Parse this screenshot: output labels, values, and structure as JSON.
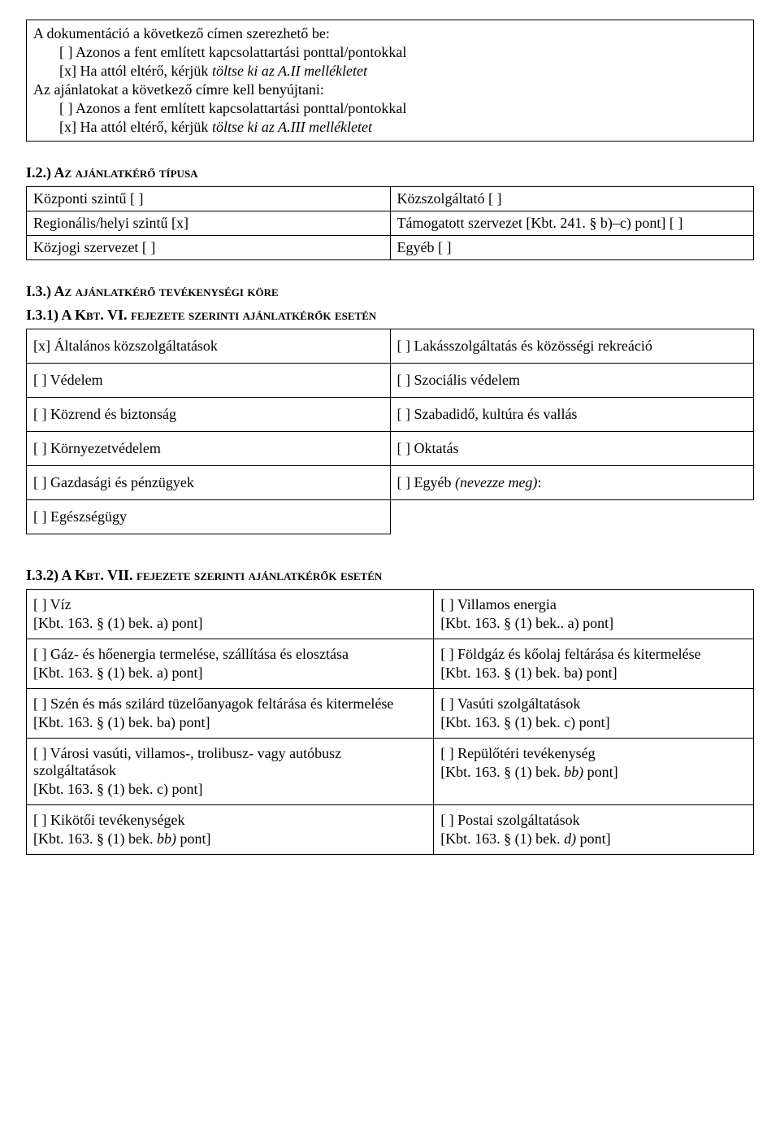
{
  "section1": {
    "line1": "A dokumentáció a következő címen szerezhető be:",
    "opt1": "[ ] Azonos a fent említett kapcsolattartási ponttal/pontokkal",
    "opt2_prefix": "[x] Ha attól eltérő, kérjük ",
    "opt2_italic": "töltse ki az A.II mellékletet",
    "line2": "Az ajánlatokat a következő címre kell benyújtani:",
    "opt3": "[ ] Azonos a fent említett kapcsolattartási ponttal/pontokkal",
    "opt4_prefix": "[x] Ha attól eltérő, kérjük ",
    "opt4_italic": "töltse ki az A.III mellékletet"
  },
  "heading_i2": "I.2.) Az ajánlatkérő típusa",
  "type_table": {
    "r1c1": "Központi szintű [ ]",
    "r1c2": "Közszolgáltató [ ]",
    "r2c1": "Regionális/helyi szintű [x]",
    "r2c2": "Támogatott szervezet [Kbt. 241. § b)–c) pont] [ ]",
    "r3c1": "Közjogi szervezet [ ]",
    "r3c2": "Egyéb [ ]"
  },
  "heading_i3": "I.3.) Az ajánlatkérő tevékenységi köre",
  "heading_i31": "I.3.1) A Kbt. VI. fejezete szerinti ajánlatkérők esetén",
  "activity_table": {
    "r1c1": "[x] Általános közszolgáltatások",
    "r1c2": "[ ] Lakásszolgáltatás és közösségi rekreáció",
    "r2c1": "[ ] Védelem",
    "r2c2": "[ ] Szociális védelem",
    "r3c1": "[ ] Közrend és biztonság",
    "r3c2": "[ ] Szabadidő, kultúra és vallás",
    "r4c1": "[ ] Környezetvédelem",
    "r4c2": "[ ] Oktatás",
    "r5c1": "[ ] Gazdasági és pénzügyek",
    "r5c2_prefix": "[ ] Egyéb ",
    "r5c2_italic": "(nevezze meg)",
    "r5c2_suffix": ":",
    "r6c1": "[ ] Egészségügy"
  },
  "heading_i32": "I.3.2) A Kbt. VII. fejezete szerinti ajánlatkérők esetén",
  "kbt_table": {
    "r1c1_a": "[ ] Víz",
    "r1c1_b": "[Kbt. 163. § (1) bek. a) pont]",
    "r1c2_a": "[ ] Villamos energia",
    "r1c2_b": "[Kbt. 163. § (1) bek.. a) pont]",
    "r2c1_a": "[ ] Gáz- és hőenergia termelése, szállítása és elosztása",
    "r2c1_b": "[Kbt. 163. § (1) bek. a) pont]",
    "r2c2_a": "[ ] Földgáz és kőolaj feltárása és kitermelése",
    "r2c2_b": "[Kbt. 163. § (1) bek. ba) pont]",
    "r3c1_a": "[ ] Szén és más szilárd tüzelőanyagok feltárása és kitermelése",
    "r3c1_b": "[Kbt. 163. § (1) bek. ba) pont]",
    "r3c2_a": "[ ] Vasúti szolgáltatások",
    "r3c2_b": "[Kbt. 163. § (1) bek. c) pont]",
    "r4c1_a": "[ ] Városi vasúti, villamos-, trolibusz- vagy autóbusz szolgáltatások",
    "r4c1_b": "[Kbt. 163. § (1) bek. c) pont]",
    "r4c2_a": "[ ] Repülőtéri tevékenység",
    "r4c2_b_prefix": "[Kbt. 163. § (1) bek. ",
    "r4c2_b_italic": "bb)",
    "r4c2_b_suffix": " pont]",
    "r5c1_a": "[ ] Kikötői tevékenységek",
    "r5c1_b_prefix": "[Kbt. 163. § (1) bek. ",
    "r5c1_b_italic": "bb)",
    "r5c1_b_suffix": " pont]",
    "r5c2_a": "[ ] Postai szolgáltatások",
    "r5c2_b_prefix": "[Kbt. 163. § (1) bek. ",
    "r5c2_b_italic": "d)",
    "r5c2_b_suffix": " pont]"
  }
}
